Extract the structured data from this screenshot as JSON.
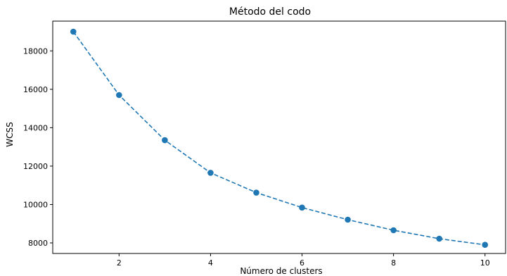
{
  "chart_data": {
    "type": "line",
    "title": "Método del codo",
    "xlabel": "Número de clusters",
    "ylabel": "WCSS",
    "x": [
      1,
      2,
      3,
      4,
      5,
      6,
      7,
      8,
      9,
      10
    ],
    "series": [
      {
        "values": [
          19000,
          15700,
          13350,
          11650,
          10620,
          9840,
          9210,
          8660,
          8220,
          7900
        ]
      }
    ],
    "xticks": [
      2,
      4,
      6,
      8,
      10
    ],
    "yticks": [
      8000,
      10000,
      12000,
      14000,
      16000,
      18000
    ],
    "xlim": [
      0.55,
      10.45
    ],
    "ylim": [
      7450,
      19550
    ],
    "line_style": "dashed",
    "marker": "circle",
    "grid": false,
    "colors": {
      "series": "#1f77b4",
      "axes": "#000000"
    }
  }
}
